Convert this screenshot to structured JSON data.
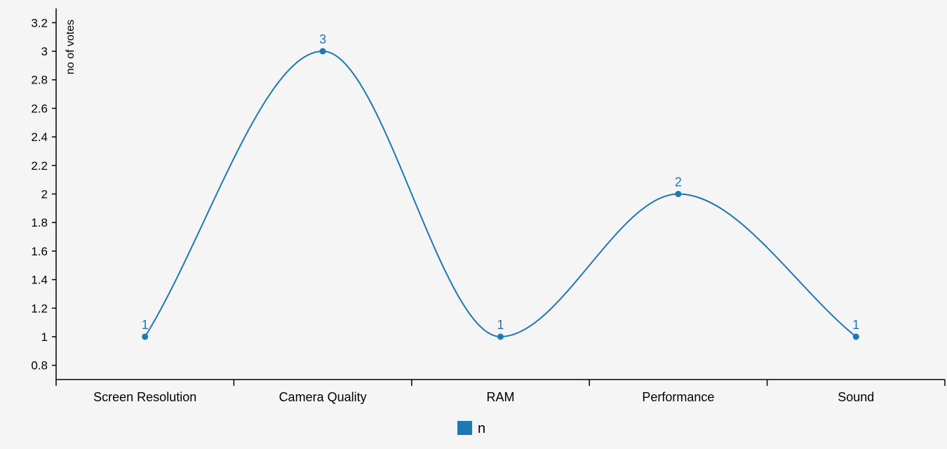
{
  "chart_data": {
    "type": "line",
    "categories": [
      "Screen Resolution",
      "Camera Quality",
      "RAM",
      "Performance",
      "Sound"
    ],
    "series": [
      {
        "name": "n",
        "values": [
          1,
          3,
          1,
          2,
          1
        ]
      }
    ],
    "xlabel": "",
    "ylabel": "no of votes",
    "ylim": [
      0.7,
      3.3
    ],
    "yticks": [
      0.8,
      1,
      1.2,
      1.4,
      1.6,
      1.8,
      2,
      2.2,
      2.4,
      2.6,
      2.8,
      3,
      3.2
    ],
    "ytick_labels": [
      "0.8",
      "1",
      "1.2",
      "1.4",
      "1.6",
      "1.8",
      "2",
      "2.2",
      "2.4",
      "2.6",
      "2.8",
      "3",
      "3.2"
    ],
    "curve": "smooth",
    "data_labels": true,
    "grid": false,
    "legend_position": "bottom-center",
    "colors": {
      "series": "#1f77b4",
      "axis": "#000000",
      "background": "#f5f5f5"
    }
  }
}
